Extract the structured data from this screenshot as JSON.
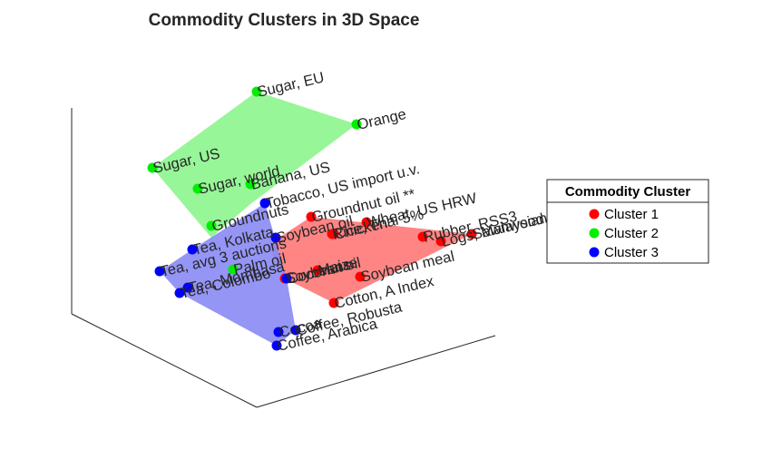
{
  "chart_data": {
    "type": "scatter",
    "title": "Commodity Clusters in 3D Space",
    "legend": {
      "title": "Commodity Cluster",
      "placement": "right",
      "entries": [
        "Cluster 1",
        "Cluster 2",
        "Cluster 3"
      ]
    },
    "colors": {
      "Cluster 1": "#ff0000",
      "Cluster 2": "#00ee00",
      "Cluster 3": "#0000ff",
      "hull_1": "#ff7878",
      "hull_2": "#8cf58c",
      "hull_3": "#8a8af5"
    },
    "series": [
      {
        "name": "Cluster 1",
        "points": [
          {
            "label": "Groundnut oil **"
          },
          {
            "label": "Wheat, US HRW"
          },
          {
            "label": "Rice, Thai 5%"
          },
          {
            "label": "Chicken"
          },
          {
            "label": "Rubber, RSS3"
          },
          {
            "label": "Logs, Malaysian"
          },
          {
            "label": "Sawnwood, Malaysian"
          },
          {
            "label": "Maize"
          },
          {
            "label": "Soybeans"
          },
          {
            "label": "Soybean meal"
          },
          {
            "label": "Cotton, A Index"
          }
        ]
      },
      {
        "name": "Cluster 2",
        "points": [
          {
            "label": "Sugar, EU"
          },
          {
            "label": "Orange"
          },
          {
            "label": "Sugar, US"
          },
          {
            "label": "Banana, US"
          },
          {
            "label": "Sugar, world"
          },
          {
            "label": "Groundnuts"
          },
          {
            "label": "Palm oil"
          }
        ]
      },
      {
        "name": "Cluster 3",
        "points": [
          {
            "label": "Tobacco, US import u.v."
          },
          {
            "label": "Tea, Kolkata"
          },
          {
            "label": "Soybean oil"
          },
          {
            "label": "Tea, avg 3 auctions"
          },
          {
            "label": "Tea, Colombo"
          },
          {
            "label": "Tea, Mombasa"
          },
          {
            "label": "Coconut oil"
          },
          {
            "label": "Coffee, Robusta"
          },
          {
            "label": "Cocoa"
          },
          {
            "label": "Coffee, Arabica"
          }
        ]
      }
    ]
  }
}
